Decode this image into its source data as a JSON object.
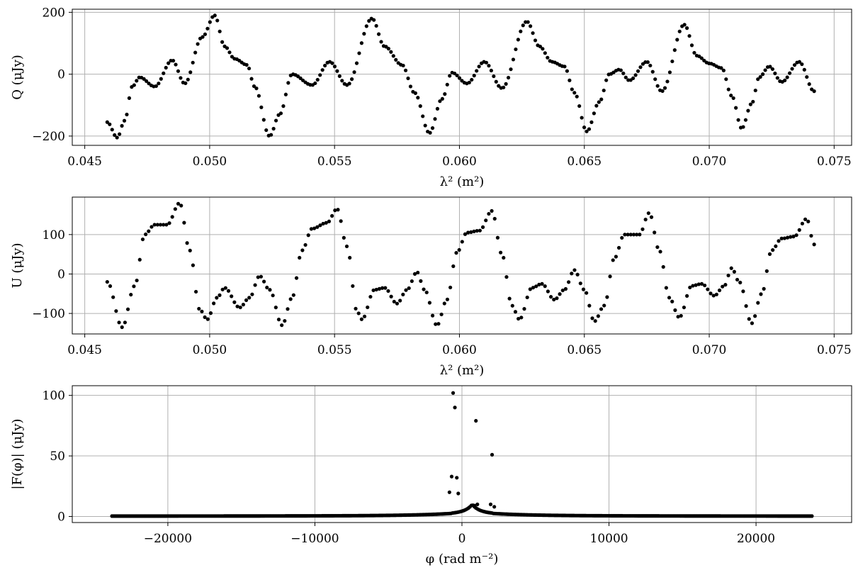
{
  "chart_data": [
    {
      "type": "scatter",
      "id": "q-panel",
      "xlabel": "λ² (m²)",
      "ylabel": "Q (μJy)",
      "xlim": [
        0.0445,
        0.0757
      ],
      "ylim": [
        -230,
        210
      ],
      "xticks": [
        0.045,
        0.05,
        0.055,
        0.06,
        0.065,
        0.07,
        0.075
      ],
      "xtick_labels": [
        "0.045",
        "0.050",
        "0.055",
        "0.060",
        "0.065",
        "0.070",
        "0.075"
      ],
      "yticks": [
        -200,
        0,
        200
      ],
      "ytick_labels": [
        "−200",
        "0",
        "200"
      ],
      "grid": true,
      "key_points": [
        [
          0.0459,
          -155
        ],
        [
          0.0463,
          -205
        ],
        [
          0.0466,
          -150
        ],
        [
          0.0469,
          -40
        ],
        [
          0.0472,
          -10
        ],
        [
          0.0478,
          -40
        ],
        [
          0.0485,
          45
        ],
        [
          0.049,
          -30
        ],
        [
          0.0497,
          120
        ],
        [
          0.0502,
          190
        ],
        [
          0.0506,
          90
        ],
        [
          0.051,
          50
        ],
        [
          0.0515,
          30
        ],
        [
          0.0518,
          -40
        ],
        [
          0.0524,
          -200
        ],
        [
          0.0528,
          -130
        ],
        [
          0.0533,
          0
        ],
        [
          0.0541,
          -35
        ],
        [
          0.0548,
          40
        ],
        [
          0.0555,
          -35
        ],
        [
          0.0565,
          180
        ],
        [
          0.057,
          90
        ],
        [
          0.0577,
          30
        ],
        [
          0.0582,
          -60
        ],
        [
          0.0588,
          -190
        ],
        [
          0.0593,
          -80
        ],
        [
          0.0597,
          5
        ],
        [
          0.0603,
          -30
        ],
        [
          0.061,
          40
        ],
        [
          0.0617,
          -45
        ],
        [
          0.0627,
          170
        ],
        [
          0.0632,
          90
        ],
        [
          0.0637,
          40
        ],
        [
          0.0642,
          25
        ],
        [
          0.0646,
          -60
        ],
        [
          0.0651,
          -185
        ],
        [
          0.0656,
          -90
        ],
        [
          0.066,
          0
        ],
        [
          0.0664,
          15
        ],
        [
          0.0668,
          -20
        ],
        [
          0.0675,
          40
        ],
        [
          0.0681,
          -55
        ],
        [
          0.069,
          160
        ],
        [
          0.0695,
          60
        ],
        [
          0.07,
          35
        ],
        [
          0.0705,
          20
        ],
        [
          0.0709,
          -70
        ],
        [
          0.0713,
          -175
        ],
        [
          0.0717,
          -95
        ],
        [
          0.072,
          -10
        ],
        [
          0.0724,
          25
        ],
        [
          0.0729,
          -25
        ],
        [
          0.0736,
          40
        ],
        [
          0.0742,
          -55
        ]
      ],
      "n_points": 290,
      "x_start": 0.0459,
      "x_end": 0.0742
    },
    {
      "type": "scatter",
      "id": "u-panel",
      "xlabel": "λ² (m²)",
      "ylabel": "U (μJy)",
      "xlim": [
        0.0445,
        0.0757
      ],
      "ylim": [
        -152,
        195
      ],
      "xticks": [
        0.045,
        0.05,
        0.055,
        0.06,
        0.065,
        0.07,
        0.075
      ],
      "xtick_labels": [
        "0.045",
        "0.050",
        "0.055",
        "0.060",
        "0.065",
        "0.070",
        "0.075"
      ],
      "yticks": [
        -100,
        0,
        100
      ],
      "ytick_labels": [
        "−100",
        "0",
        "100"
      ],
      "grid": true,
      "key_points": [
        [
          0.0459,
          -20
        ],
        [
          0.0465,
          -135
        ],
        [
          0.047,
          -30
        ],
        [
          0.0474,
          100
        ],
        [
          0.0478,
          125
        ],
        [
          0.0483,
          125
        ],
        [
          0.0488,
          180
        ],
        [
          0.0492,
          60
        ],
        [
          0.0496,
          -90
        ],
        [
          0.0499,
          -115
        ],
        [
          0.0503,
          -60
        ],
        [
          0.0506,
          -35
        ],
        [
          0.0512,
          -85
        ],
        [
          0.0516,
          -60
        ],
        [
          0.052,
          -5
        ],
        [
          0.0524,
          -40
        ],
        [
          0.0529,
          -130
        ],
        [
          0.0533,
          -60
        ],
        [
          0.0537,
          60
        ],
        [
          0.0541,
          115
        ],
        [
          0.0547,
          130
        ],
        [
          0.0551,
          165
        ],
        [
          0.0555,
          70
        ],
        [
          0.0559,
          -95
        ],
        [
          0.0561,
          -115
        ],
        [
          0.0566,
          -40
        ],
        [
          0.057,
          -35
        ],
        [
          0.0575,
          -75
        ],
        [
          0.0579,
          -40
        ],
        [
          0.0583,
          5
        ],
        [
          0.0586,
          -40
        ],
        [
          0.0591,
          -130
        ],
        [
          0.0595,
          -65
        ],
        [
          0.0599,
          55
        ],
        [
          0.0603,
          105
        ],
        [
          0.0608,
          110
        ],
        [
          0.0613,
          160
        ],
        [
          0.0617,
          50
        ],
        [
          0.0621,
          -80
        ],
        [
          0.0624,
          -115
        ],
        [
          0.0629,
          -35
        ],
        [
          0.0633,
          -25
        ],
        [
          0.0638,
          -65
        ],
        [
          0.0642,
          -40
        ],
        [
          0.0646,
          10
        ],
        [
          0.065,
          -40
        ],
        [
          0.0654,
          -120
        ],
        [
          0.0658,
          -80
        ],
        [
          0.0662,
          40
        ],
        [
          0.0666,
          100
        ],
        [
          0.0672,
          100
        ],
        [
          0.0676,
          155
        ],
        [
          0.068,
          60
        ],
        [
          0.0684,
          -60
        ],
        [
          0.0688,
          -110
        ],
        [
          0.0693,
          -30
        ],
        [
          0.0697,
          -25
        ],
        [
          0.0702,
          -55
        ],
        [
          0.0706,
          -30
        ],
        [
          0.0709,
          15
        ],
        [
          0.0712,
          -20
        ],
        [
          0.0717,
          -125
        ],
        [
          0.0721,
          -50
        ],
        [
          0.0725,
          60
        ],
        [
          0.0729,
          90
        ],
        [
          0.0734,
          95
        ],
        [
          0.0739,
          140
        ],
        [
          0.0742,
          75
        ]
      ],
      "n_points": 240,
      "x_start": 0.0459,
      "x_end": 0.0742
    },
    {
      "type": "scatter",
      "id": "f-panel",
      "xlabel": "φ (rad m⁻²)",
      "ylabel": "|F(φ)| (μJy)",
      "xlim": [
        -26500,
        26500
      ],
      "ylim": [
        -5,
        108
      ],
      "xticks": [
        -20000,
        -10000,
        0,
        10000,
        20000
      ],
      "xtick_labels": [
        "−20000",
        "−10000",
        "0",
        "10000",
        "20000"
      ],
      "yticks": [
        0,
        50,
        100
      ],
      "ytick_labels": [
        "0",
        "50",
        "100"
      ],
      "grid": true,
      "n_points": 480,
      "x_start": -23800,
      "x_end": 23800,
      "peaks": [
        [
          -600,
          102
        ],
        [
          -480,
          90
        ],
        [
          -700,
          33
        ],
        [
          -350,
          32
        ],
        [
          -850,
          20
        ],
        [
          -250,
          19
        ],
        [
          950,
          79
        ],
        [
          2050,
          51
        ],
        [
          1050,
          10
        ],
        [
          1950,
          10
        ],
        [
          850,
          9
        ],
        [
          2200,
          8
        ]
      ]
    }
  ]
}
